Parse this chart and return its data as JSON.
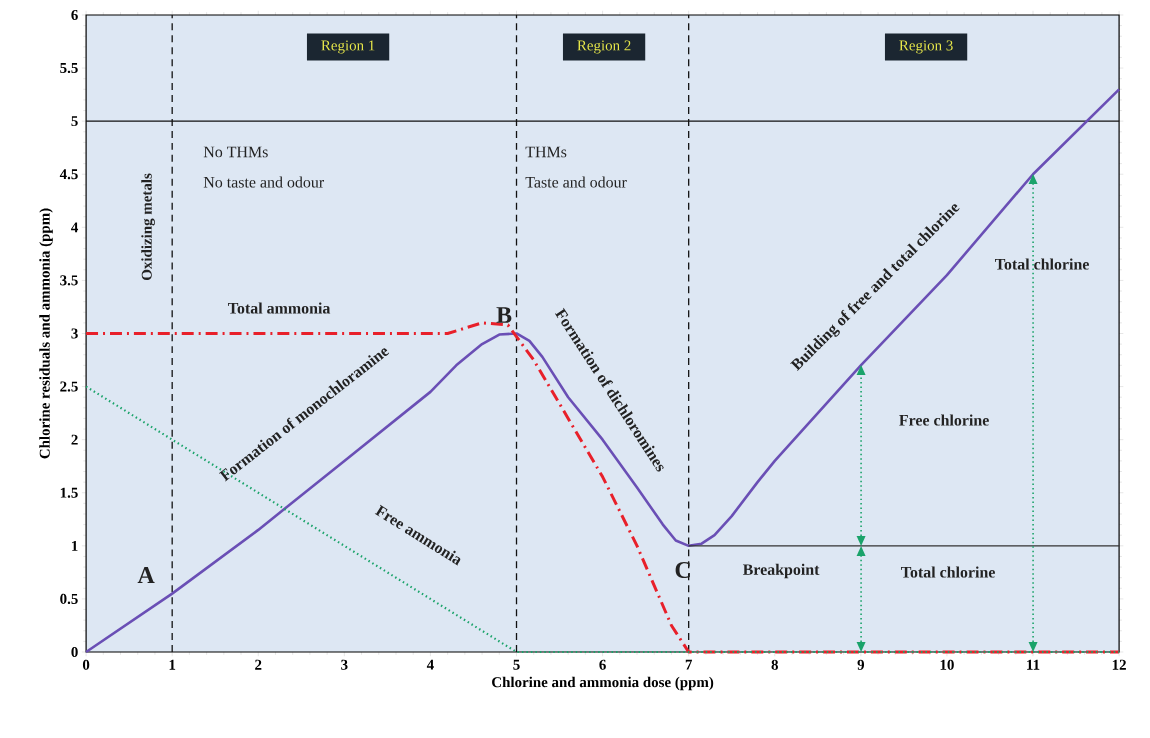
{
  "chart_data": {
    "type": "line",
    "xlabel": "Chlorine  and ammonia dose (ppm)",
    "ylabel": "Chlorine  residuals and ammonia (ppm)",
    "xlim": [
      0,
      12
    ],
    "ylim": [
      0,
      6
    ],
    "xticks": [
      0,
      1,
      2,
      3,
      4,
      5,
      6,
      7,
      8,
      9,
      10,
      11,
      12
    ],
    "yticks": [
      0,
      0.5,
      1,
      1.5,
      2,
      2.5,
      3,
      3.5,
      4,
      4.5,
      5,
      5.5,
      6
    ],
    "grid": false,
    "series": [
      {
        "color": "#6a4fb5",
        "line_style": "solid",
        "x": [
          0,
          1,
          2,
          3,
          4,
          4.3,
          4.6,
          4.8,
          5.0,
          5.15,
          5.3,
          5.6,
          6,
          6.4,
          6.7,
          6.85,
          7,
          7.15,
          7.3,
          7.5,
          7.8,
          8,
          9,
          10,
          11,
          12
        ],
        "values": [
          0,
          0.55,
          1.15,
          1.8,
          2.45,
          2.7,
          2.9,
          2.99,
          3.0,
          2.93,
          2.78,
          2.4,
          2.0,
          1.55,
          1.2,
          1.05,
          1.0,
          1.02,
          1.1,
          1.28,
          1.6,
          1.8,
          2.7,
          3.55,
          4.5,
          5.3
        ]
      },
      {
        "color": "#e8202a",
        "line_style": "dashed",
        "x": [
          0,
          4.2,
          4.6,
          4.9,
          5.2,
          5.6,
          6,
          6.4,
          6.8,
          7,
          12
        ],
        "values": [
          3,
          3,
          3.1,
          3.08,
          2.75,
          2.2,
          1.65,
          1.0,
          0.25,
          0,
          0
        ]
      },
      {
        "color": "#1aa36a",
        "line_style": "dotted",
        "x": [
          0,
          1,
          2,
          3,
          4,
          5,
          12
        ],
        "values": [
          2.5,
          2.0,
          1.5,
          1.0,
          0.5,
          0,
          0
        ]
      },
      {
        "color": "#333333",
        "line_style": "solid",
        "x": [
          7,
          12
        ],
        "values": [
          1,
          1
        ]
      }
    ],
    "ref_lines": [
      {
        "axis": "x",
        "value": 1,
        "line_style": "dashed",
        "color": "#111111"
      },
      {
        "axis": "x",
        "value": 5,
        "line_style": "dashed",
        "color": "#111111"
      },
      {
        "axis": "x",
        "value": 7,
        "line_style": "dashed",
        "color": "#111111"
      },
      {
        "axis": "y",
        "value": 5,
        "line_style": "solid",
        "color": "#111111"
      }
    ],
    "annotations": [
      "Region 1",
      "Region 2",
      "Region 3",
      "No THMs",
      "No taste and odour",
      "THMs",
      "Taste and odour",
      "Oxidizing  metals",
      "Total ammonia",
      "B",
      "Formation of monochloramine",
      "Free ammonia",
      "A",
      "Formation of dichloromines",
      "C",
      "Breakpoint",
      "Building of free and total chlorine",
      "Total chlorine",
      "Free chlorine",
      "Total chlorine"
    ]
  }
}
